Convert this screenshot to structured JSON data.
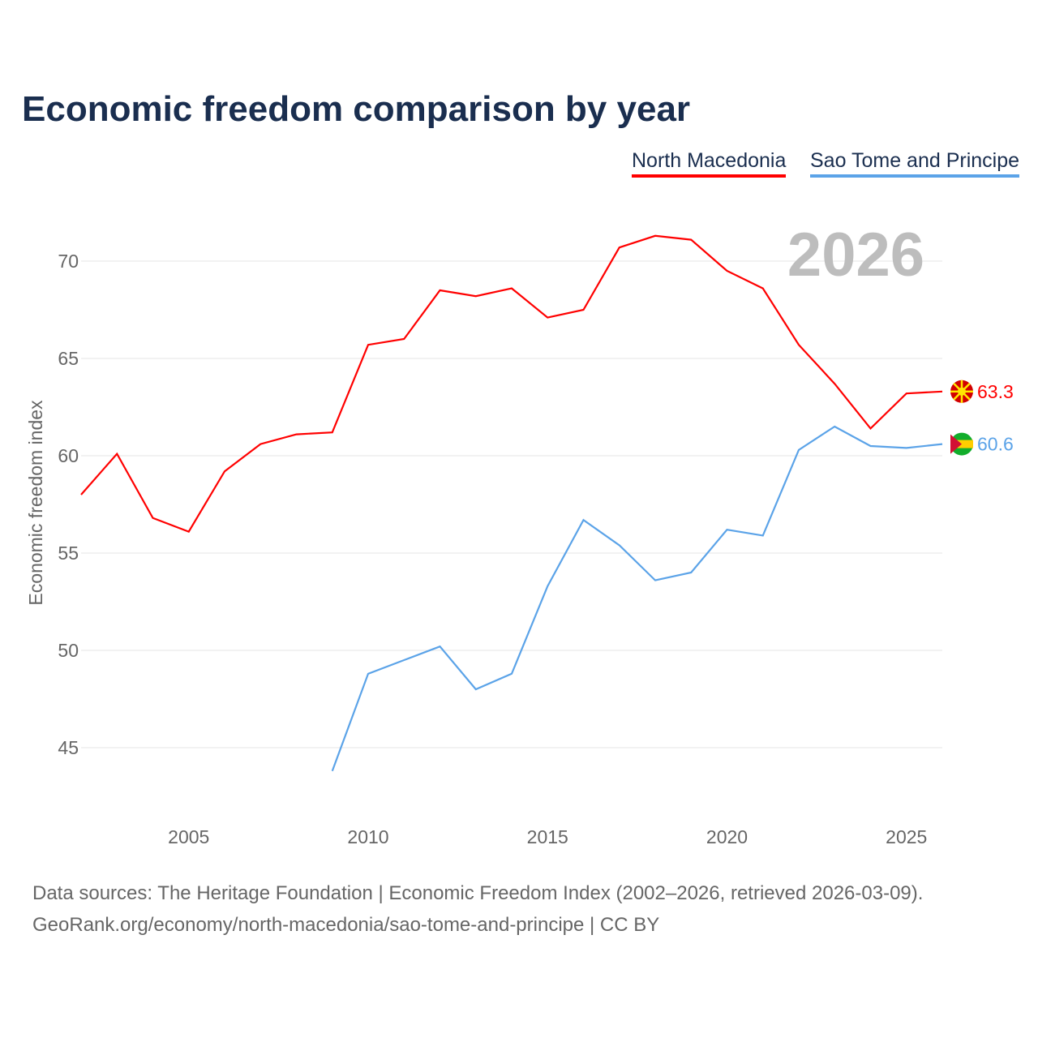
{
  "chart_data": {
    "type": "line",
    "title": "Economic freedom comparison by year",
    "ylabel": "Economic freedom index",
    "xlabel": "",
    "ylim": [
      41.5,
      72.5
    ],
    "xlim": [
      2002,
      2026
    ],
    "yticks": [
      45,
      50,
      55,
      60,
      65,
      70
    ],
    "xticks": [
      2005,
      2010,
      2015,
      2020,
      2025
    ],
    "grid": true,
    "legend_position": "top-right",
    "year_watermark": "2026",
    "series": [
      {
        "name": "North Macedonia",
        "color": "#ff0000",
        "end_label": "63.3",
        "x": [
          2002,
          2003,
          2004,
          2005,
          2006,
          2007,
          2008,
          2009,
          2010,
          2011,
          2012,
          2013,
          2014,
          2015,
          2016,
          2017,
          2018,
          2019,
          2020,
          2021,
          2022,
          2023,
          2024,
          2025,
          2026
        ],
        "values": [
          58.0,
          60.1,
          56.8,
          56.1,
          59.2,
          60.6,
          61.1,
          61.2,
          65.7,
          66.0,
          68.5,
          68.2,
          68.6,
          67.1,
          67.5,
          70.7,
          71.3,
          71.1,
          69.5,
          68.6,
          65.7,
          63.7,
          61.4,
          63.2,
          63.3
        ]
      },
      {
        "name": "Sao Tome and Principe",
        "color": "#5ba3e8",
        "end_label": "60.6",
        "x": [
          2009,
          2010,
          2011,
          2012,
          2013,
          2014,
          2015,
          2016,
          2017,
          2018,
          2019,
          2020,
          2021,
          2022,
          2023,
          2024,
          2025,
          2026
        ],
        "values": [
          43.8,
          48.8,
          49.5,
          50.2,
          48.0,
          48.8,
          53.3,
          56.7,
          55.4,
          53.6,
          54.0,
          56.2,
          55.9,
          60.3,
          61.5,
          60.5,
          60.4,
          60.6
        ]
      }
    ]
  },
  "footer": {
    "line1": "Data sources: The Heritage Foundation | Economic Freedom Index (2002–2026, retrieved 2026-03-09).",
    "line2": "GeoRank.org/economy/north-macedonia/sao-tome-and-principe | CC BY"
  }
}
